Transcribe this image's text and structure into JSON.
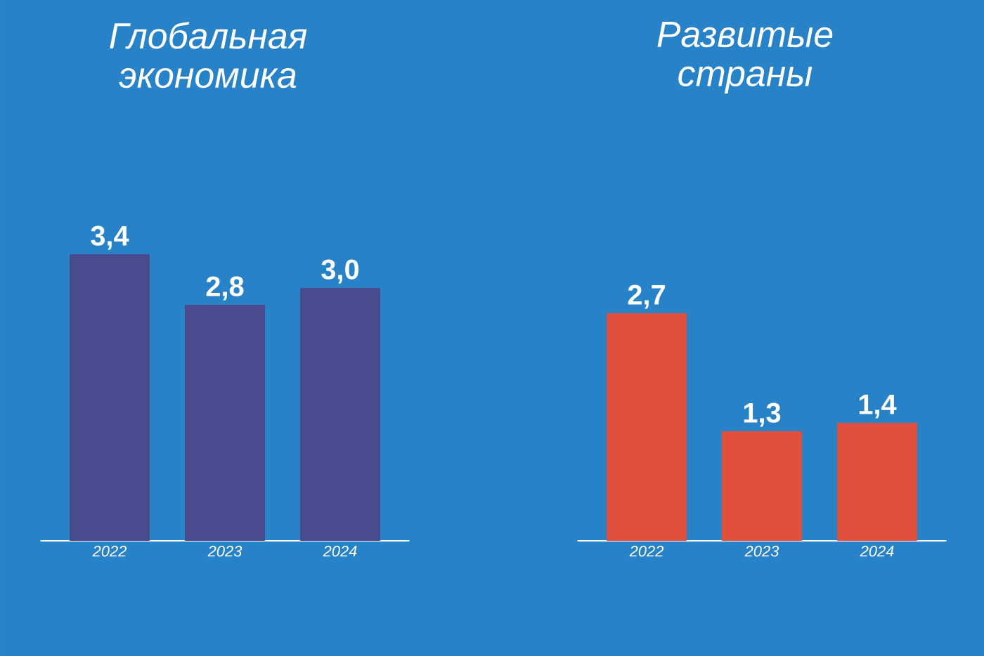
{
  "chart_data": [
    {
      "type": "bar",
      "title": "Глобальная экономика",
      "categories": [
        "2022",
        "2023",
        "2024"
      ],
      "values": [
        3.4,
        2.8,
        3.0
      ],
      "value_labels": [
        "3,4",
        "2,8",
        "3,0"
      ],
      "color": "#4a4a8e"
    },
    {
      "type": "bar",
      "title": "Развитые страны",
      "categories": [
        "2022",
        "2023",
        "2024"
      ],
      "values": [
        2.7,
        1.3,
        1.4
      ],
      "value_labels": [
        "2,7",
        "1,3",
        "1,4"
      ],
      "color": "#e0503c"
    }
  ]
}
